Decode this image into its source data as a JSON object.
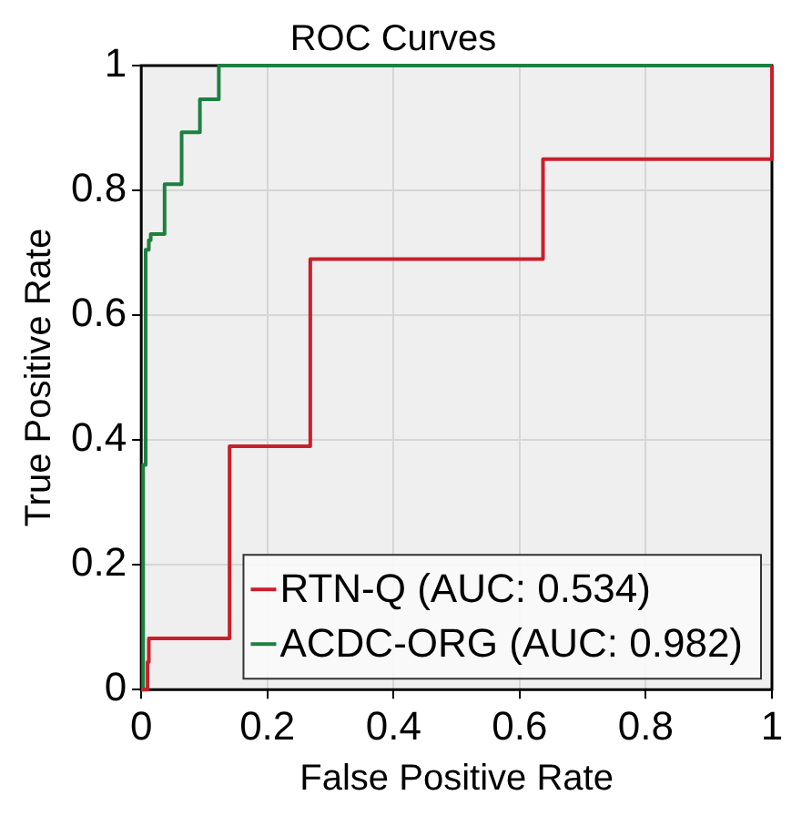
{
  "chart_data": {
    "type": "step",
    "title": "ROC Curves",
    "xlabel": "False Positive Rate",
    "ylabel": "True Positive Rate",
    "series": [
      {
        "name": "RTN-Q (AUC: 0.534)",
        "color": "#c8202a",
        "x": [
          0,
          0.01,
          0.012,
          0.14,
          0.268,
          0.637,
          1
        ],
        "values": [
          0,
          0.044,
          0.082,
          0.39,
          0.69,
          0.85,
          1
        ]
      },
      {
        "name": "ACDC-ORG (AUC: 0.982)",
        "color": "#1e8040",
        "x": [
          0,
          0.003,
          0.007,
          0.012,
          0.015,
          0.037,
          0.064,
          0.093,
          0.123,
          1
        ],
        "values": [
          0,
          0.36,
          0.705,
          0.72,
          0.73,
          0.81,
          0.893,
          0.946,
          1,
          1
        ]
      }
    ],
    "xlim": [
      0,
      1
    ],
    "ylim": [
      0,
      1
    ],
    "xticks": [
      0,
      0.2,
      0.4,
      0.6,
      0.8,
      1
    ],
    "yticks": [
      0,
      0.2,
      0.4,
      0.6,
      0.8,
      1
    ],
    "grid": true,
    "legend": "bottom right",
    "marker": "none",
    "line_style": "solid"
  }
}
